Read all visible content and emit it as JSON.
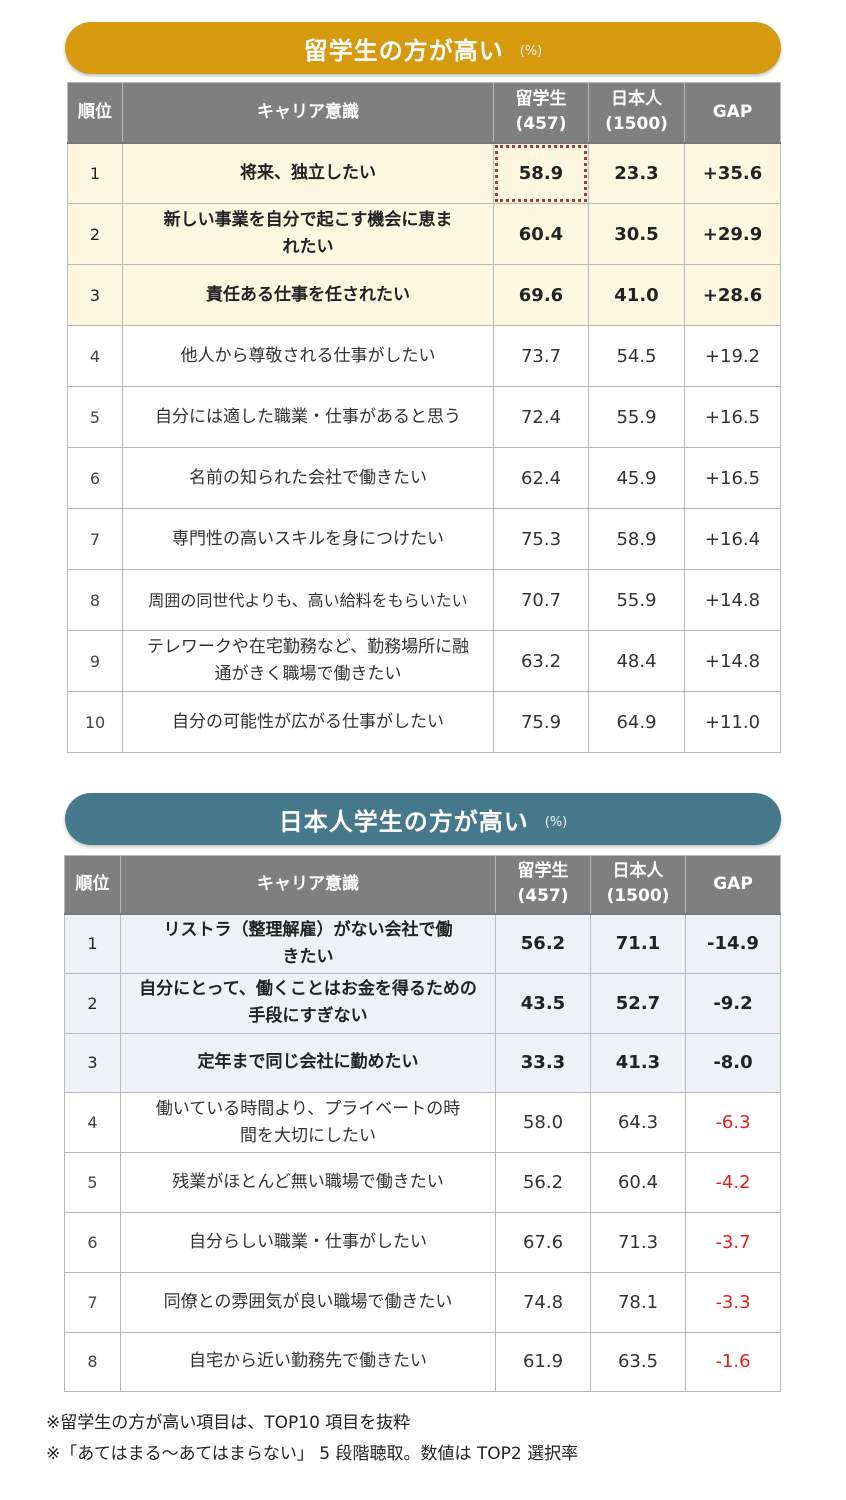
{
  "section1": {
    "title": "留学生の方が高い",
    "unit": "(%)",
    "headers": {
      "rank": "順位",
      "item": "キャリア意識",
      "intl_line1": "留学生",
      "intl_line2": "(457)",
      "jp_line1": "日本人",
      "jp_line2": "(1500)",
      "gap": "GAP"
    },
    "rows": [
      {
        "rank": "1",
        "item": "将来、独立したい",
        "intl": "58.9",
        "jp": "23.3",
        "gap": "+35.6"
      },
      {
        "rank": "2",
        "item": "新しい事業を自分で起こす機会に恵まれたい",
        "intl": "60.4",
        "jp": "30.5",
        "gap": "+29.9"
      },
      {
        "rank": "3",
        "item": "責任ある仕事を任されたい",
        "intl": "69.6",
        "jp": "41.0",
        "gap": "+28.6"
      },
      {
        "rank": "4",
        "item": "他人から尊敬される仕事がしたい",
        "intl": "73.7",
        "jp": "54.5",
        "gap": "+19.2"
      },
      {
        "rank": "5",
        "item": "自分には適した職業・仕事があると思う",
        "intl": "72.4",
        "jp": "55.9",
        "gap": "+16.5"
      },
      {
        "rank": "6",
        "item": "名前の知られた会社で働きたい",
        "intl": "62.4",
        "jp": "45.9",
        "gap": "+16.5"
      },
      {
        "rank": "7",
        "item": "専門性の高いスキルを身につけたい",
        "intl": "75.3",
        "jp": "58.9",
        "gap": "+16.4"
      },
      {
        "rank": "8",
        "item": "周囲の同世代よりも、高い給料をもらいたい",
        "intl": "70.7",
        "jp": "55.9",
        "gap": "+14.8"
      },
      {
        "rank": "9",
        "item": "テレワークや在宅勤務など、勤務場所に融通がきく職場で働きたい",
        "intl": "63.2",
        "jp": "48.4",
        "gap": "+14.8"
      },
      {
        "rank": "10",
        "item": "自分の可能性が広がる仕事がしたい",
        "intl": "75.9",
        "jp": "64.9",
        "gap": "+11.0"
      }
    ]
  },
  "section2": {
    "title": "日本人学生の方が高い",
    "unit": "(%)",
    "headers": {
      "rank": "順位",
      "item": "キャリア意識",
      "intl_line1": "留学生",
      "intl_line2": "(457)",
      "jp_line1": "日本人",
      "jp_line2": "(1500)",
      "gap": "GAP"
    },
    "rows": [
      {
        "rank": "1",
        "item": "リストラ（整理解雇）がない会社で働きたい",
        "intl": "56.2",
        "jp": "71.1",
        "gap": "-14.9"
      },
      {
        "rank": "2",
        "item": "自分にとって、働くことはお金を得るための手段にすぎない",
        "intl": "43.5",
        "jp": "52.7",
        "gap": "-9.2"
      },
      {
        "rank": "3",
        "item": "定年まで同じ会社に勤めたい",
        "intl": "33.3",
        "jp": "41.3",
        "gap": "-8.0"
      },
      {
        "rank": "4",
        "item": "働いている時間より、プライベートの時間を大切にしたい",
        "intl": "58.0",
        "jp": "64.3",
        "gap": "-6.3"
      },
      {
        "rank": "5",
        "item": "残業がほとんど無い職場で働きたい",
        "intl": "56.2",
        "jp": "60.4",
        "gap": "-4.2"
      },
      {
        "rank": "6",
        "item": "自分らしい職業・仕事がしたい",
        "intl": "67.6",
        "jp": "71.3",
        "gap": "-3.7"
      },
      {
        "rank": "7",
        "item": "同僚との雰囲気が良い職場で働きたい",
        "intl": "74.8",
        "jp": "78.1",
        "gap": "-3.3"
      },
      {
        "rank": "8",
        "item": "自宅から近い勤務先で働きたい",
        "intl": "61.9",
        "jp": "63.5",
        "gap": "-1.6"
      }
    ]
  },
  "notes": [
    "※留学生の方が高い項目は、TOP10 項目を抜粋",
    "※「あてはまる～あてはまらない」 5 段階聴取。数値は TOP2 選択率"
  ]
}
